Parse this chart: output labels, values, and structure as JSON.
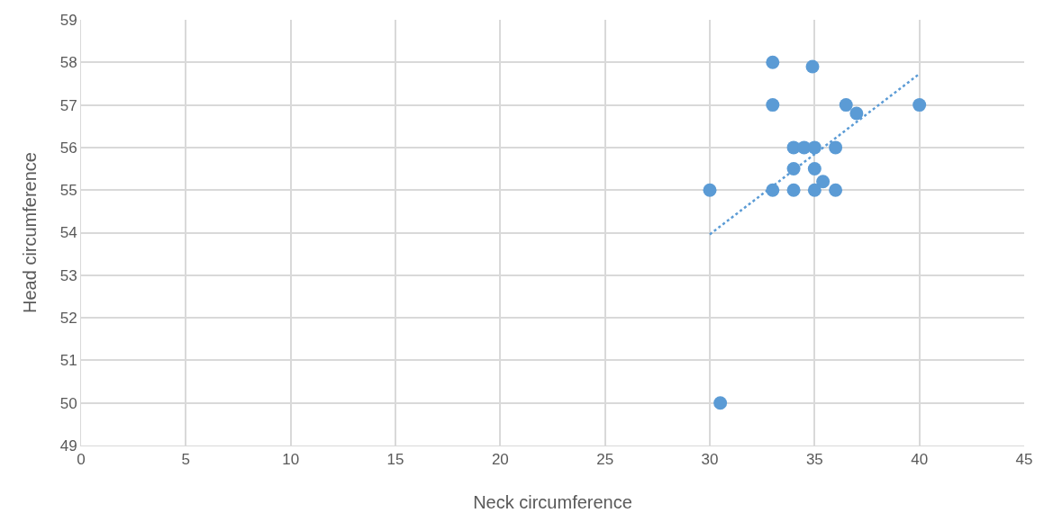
{
  "chart_data": {
    "type": "scatter",
    "xlabel": "Neck circumference",
    "ylabel": "Head circumference",
    "xlim": [
      0,
      45
    ],
    "xticks": [
      0,
      5,
      10,
      15,
      20,
      25,
      30,
      35,
      40,
      45
    ],
    "ylim": [
      49,
      59
    ],
    "yticks": [
      49,
      50,
      51,
      52,
      53,
      54,
      55,
      56,
      57,
      58,
      59
    ],
    "grid": true,
    "marker": "circle",
    "series": [
      {
        "color": "#5b9bd5",
        "x": [
          33,
          34.9,
          33,
          36.5,
          37,
          40,
          34,
          34.5,
          35,
          36,
          34,
          35,
          35.4,
          30,
          33,
          34,
          35,
          36,
          30.5
        ],
        "values": [
          58,
          57.9,
          57,
          57,
          56.8,
          57,
          56,
          56,
          56,
          56,
          55.5,
          55.5,
          55.2,
          55,
          55,
          55,
          55,
          55,
          50
        ]
      },
      {
        "type": "line",
        "color": "#5b9bd5",
        "line_style": "dotted",
        "marker": "none",
        "x": [
          30,
          40
        ],
        "values": [
          53.96,
          57.73
        ]
      }
    ]
  }
}
